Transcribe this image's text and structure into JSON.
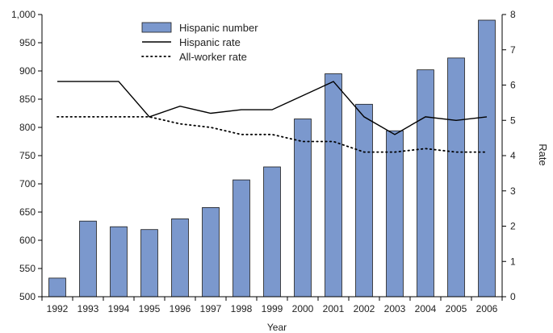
{
  "chart_data": {
    "type": "bar+line",
    "xlabel": "Year",
    "ylabel_left": "",
    "ylabel_right": "Rate",
    "categories": [
      "1992",
      "1993",
      "1994",
      "1995",
      "1996",
      "1997",
      "1998",
      "1999",
      "2000",
      "2001",
      "2002",
      "2003",
      "2004",
      "2005",
      "2006"
    ],
    "y_left": {
      "range": [
        500,
        1000
      ],
      "ticks": [
        "500",
        "550",
        "600",
        "650",
        "700",
        "750",
        "800",
        "850",
        "900",
        "950",
        "1,000"
      ]
    },
    "y_right": {
      "range": [
        0,
        8
      ],
      "ticks": [
        "0",
        "1",
        "2",
        "3",
        "4",
        "5",
        "6",
        "7",
        "8"
      ]
    },
    "series": [
      {
        "name": "Hispanic number",
        "kind": "bar",
        "axis": "left",
        "color": "#7b98cd",
        "values": [
          533,
          634,
          624,
          619,
          638,
          658,
          707,
          730,
          815,
          895,
          841,
          794,
          902,
          923,
          990
        ]
      },
      {
        "name": "Hispanic rate",
        "kind": "line",
        "axis": "right",
        "color": "#000000",
        "style": "solid",
        "values": [
          6.1,
          6.1,
          6.1,
          5.1,
          5.4,
          5.2,
          5.3,
          5.3,
          5.7,
          6.1,
          5.1,
          4.6,
          5.1,
          5.0,
          5.1
        ]
      },
      {
        "name": "All-worker rate",
        "kind": "line",
        "axis": "right",
        "color": "#000000",
        "style": "dotted",
        "values": [
          5.1,
          5.1,
          5.1,
          5.1,
          4.9,
          4.8,
          4.6,
          4.6,
          4.4,
          4.4,
          4.1,
          4.1,
          4.2,
          4.1,
          4.1
        ]
      }
    ],
    "legend_position": "top-left inside plot",
    "grid": false
  }
}
